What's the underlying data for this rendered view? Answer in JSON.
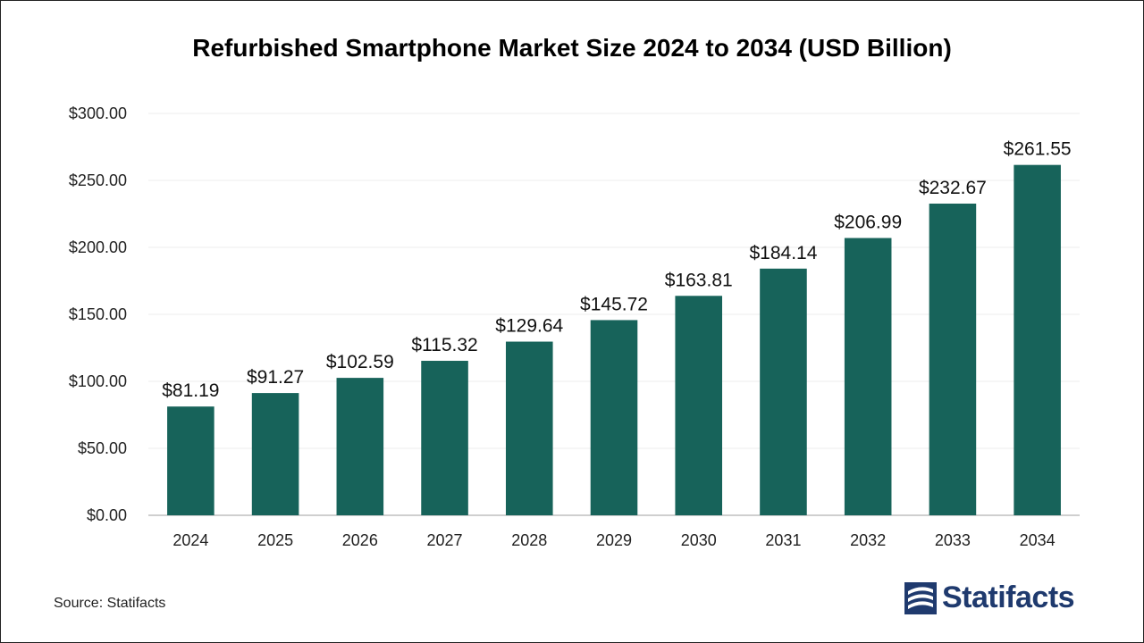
{
  "chart_data": {
    "type": "bar",
    "title": "Refurbished Smartphone Market Size 2024 to 2034 (USD Billion)",
    "categories": [
      "2024",
      "2025",
      "2026",
      "2027",
      "2028",
      "2029",
      "2030",
      "2031",
      "2032",
      "2033",
      "2034"
    ],
    "values": [
      81.19,
      91.27,
      102.59,
      115.32,
      129.64,
      145.72,
      163.81,
      184.14,
      206.99,
      232.67,
      261.55
    ],
    "data_labels": [
      "$81.19",
      "$91.27",
      "$102.59",
      "$115.32",
      "$129.64",
      "$145.72",
      "$163.81",
      "$184.14",
      "$206.99",
      "$232.67",
      "$261.55"
    ],
    "yticks": [
      0,
      50,
      100,
      150,
      200,
      250,
      300
    ],
    "ytick_labels": [
      "$0.00",
      "$50.00",
      "$100.00",
      "$150.00",
      "$200.00",
      "$250.00",
      "$300.00"
    ],
    "ylim": [
      0,
      300
    ],
    "xlabel": "",
    "ylabel": "",
    "grid": true,
    "legend": "none",
    "bar_color": "#17635a"
  },
  "footer": {
    "source": "Source: Statifacts",
    "logo_text": "Statifacts",
    "logo_color": "#1f3a6e"
  }
}
